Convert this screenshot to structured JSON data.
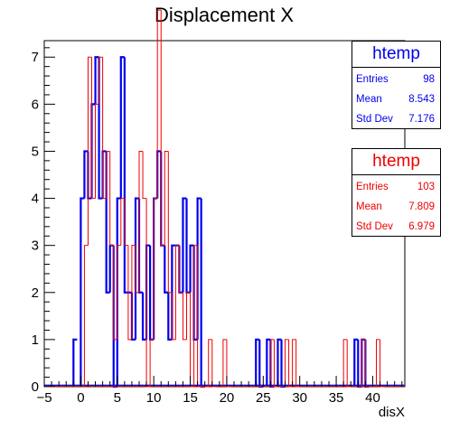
{
  "chart_data": {
    "type": "histogram",
    "title": "Displacement X",
    "xlabel": "disX",
    "ylabel": "",
    "xlim": [
      -5,
      44.4
    ],
    "ylim": [
      0,
      7.35
    ],
    "xticks": [
      -5,
      0,
      5,
      10,
      15,
      20,
      25,
      30,
      35,
      40
    ],
    "yticks": [
      0,
      1,
      2,
      3,
      4,
      5,
      6,
      7
    ],
    "bin_width": 0.5,
    "series": [
      {
        "name": "htemp",
        "color": "#0000ee",
        "entries": "98",
        "mean": "8.543",
        "std_dev": "7.176",
        "bins": [
          {
            "x": -1.0,
            "v": 1
          },
          {
            "x": 0.0,
            "v": 4
          },
          {
            "x": 0.5,
            "v": 5
          },
          {
            "x": 1.0,
            "v": 4
          },
          {
            "x": 1.5,
            "v": 6
          },
          {
            "x": 2.0,
            "v": 7
          },
          {
            "x": 2.5,
            "v": 4
          },
          {
            "x": 3.0,
            "v": 5
          },
          {
            "x": 3.5,
            "v": 2
          },
          {
            "x": 4.0,
            "v": 3
          },
          {
            "x": 4.5,
            "v": 0
          },
          {
            "x": 5.0,
            "v": 4
          },
          {
            "x": 5.5,
            "v": 7
          },
          {
            "x": 6.0,
            "v": 2
          },
          {
            "x": 6.5,
            "v": 2
          },
          {
            "x": 7.0,
            "v": 1
          },
          {
            "x": 7.5,
            "v": 4
          },
          {
            "x": 8.0,
            "v": 2
          },
          {
            "x": 8.5,
            "v": 1
          },
          {
            "x": 9.0,
            "v": 3
          },
          {
            "x": 9.5,
            "v": 1
          },
          {
            "x": 10.0,
            "v": 4
          },
          {
            "x": 10.5,
            "v": 5
          },
          {
            "x": 11.0,
            "v": 3
          },
          {
            "x": 11.5,
            "v": 2
          },
          {
            "x": 12.0,
            "v": 1
          },
          {
            "x": 12.5,
            "v": 3
          },
          {
            "x": 13.0,
            "v": 3
          },
          {
            "x": 13.5,
            "v": 2
          },
          {
            "x": 14.0,
            "v": 4
          },
          {
            "x": 14.5,
            "v": 2
          },
          {
            "x": 15.0,
            "v": 3
          },
          {
            "x": 15.5,
            "v": 1
          },
          {
            "x": 16.0,
            "v": 4
          },
          {
            "x": 16.5,
            "v": 0
          },
          {
            "x": 24.0,
            "v": 1
          },
          {
            "x": 24.5,
            "v": 0
          },
          {
            "x": 25.5,
            "v": 1
          },
          {
            "x": 26.0,
            "v": 0
          },
          {
            "x": 27.0,
            "v": 1
          },
          {
            "x": 27.5,
            "v": 0
          },
          {
            "x": 37.5,
            "v": 1
          },
          {
            "x": 38.0,
            "v": 0
          },
          {
            "x": 38.5,
            "v": 1
          },
          {
            "x": 39.0,
            "v": 0
          }
        ]
      },
      {
        "name": "htemp",
        "color": "#ee0000",
        "entries": "103",
        "mean": "7.809",
        "std_dev": "6.979",
        "bins": [
          {
            "x": 0.5,
            "v": 3
          },
          {
            "x": 1.0,
            "v": 7
          },
          {
            "x": 1.5,
            "v": 4
          },
          {
            "x": 2.0,
            "v": 6
          },
          {
            "x": 2.5,
            "v": 7
          },
          {
            "x": 3.0,
            "v": 4
          },
          {
            "x": 3.5,
            "v": 5
          },
          {
            "x": 4.0,
            "v": 3
          },
          {
            "x": 4.5,
            "v": 1
          },
          {
            "x": 5.0,
            "v": 3
          },
          {
            "x": 5.5,
            "v": 4
          },
          {
            "x": 6.0,
            "v": 3
          },
          {
            "x": 6.5,
            "v": 1
          },
          {
            "x": 7.0,
            "v": 3
          },
          {
            "x": 7.5,
            "v": 2
          },
          {
            "x": 8.0,
            "v": 5
          },
          {
            "x": 8.5,
            "v": 4
          },
          {
            "x": 9.0,
            "v": 0
          },
          {
            "x": 9.5,
            "v": 1
          },
          {
            "x": 10.0,
            "v": 4
          },
          {
            "x": 10.5,
            "v": 8
          },
          {
            "x": 11.0,
            "v": 3
          },
          {
            "x": 11.5,
            "v": 5
          },
          {
            "x": 12.0,
            "v": 2
          },
          {
            "x": 12.5,
            "v": 1
          },
          {
            "x": 13.0,
            "v": 3
          },
          {
            "x": 13.5,
            "v": 2
          },
          {
            "x": 14.0,
            "v": 1
          },
          {
            "x": 14.5,
            "v": 2
          },
          {
            "x": 15.0,
            "v": 0
          },
          {
            "x": 15.5,
            "v": 3
          },
          {
            "x": 16.0,
            "v": 0
          },
          {
            "x": 16.5,
            "v": 0
          },
          {
            "x": 17.0,
            "v": 0
          },
          {
            "x": 17.5,
            "v": 1
          },
          {
            "x": 18.0,
            "v": 0
          },
          {
            "x": 19.5,
            "v": 1
          },
          {
            "x": 20.0,
            "v": 0
          },
          {
            "x": 26.0,
            "v": 1
          },
          {
            "x": 26.5,
            "v": 0
          },
          {
            "x": 28.0,
            "v": 1
          },
          {
            "x": 28.5,
            "v": 0
          },
          {
            "x": 29.0,
            "v": 1
          },
          {
            "x": 29.5,
            "v": 0
          },
          {
            "x": 36.0,
            "v": 1
          },
          {
            "x": 36.5,
            "v": 0
          },
          {
            "x": 38.5,
            "v": 1
          },
          {
            "x": 39.0,
            "v": 0
          },
          {
            "x": 40.5,
            "v": 1
          },
          {
            "x": 41.0,
            "v": 0
          }
        ]
      }
    ]
  },
  "stats_labels": {
    "entries": "Entries",
    "mean": "Mean",
    "std_dev": "Std Dev"
  }
}
